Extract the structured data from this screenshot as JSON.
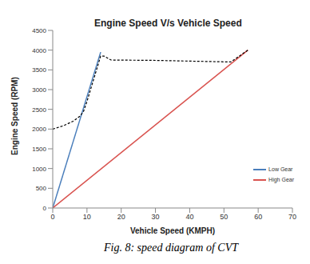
{
  "chart_data": {
    "type": "line",
    "title": "Engine Speed V/s Vehicle Speed",
    "x_label": "Vehicle Speed (KMPH)",
    "y_label": "Engine Speed (RPM)",
    "caption": "Fig. 8: speed diagram of CVT",
    "xlim": [
      0,
      70
    ],
    "xticks": [
      0,
      10,
      20,
      30,
      40,
      50,
      60,
      70
    ],
    "ylim": [
      0,
      4500
    ],
    "yticks": [
      0,
      500,
      1000,
      1500,
      2000,
      2500,
      3000,
      3500,
      4000,
      4500
    ],
    "grid": false,
    "legend": "right",
    "series": [
      {
        "name": "Low Gear",
        "color": "#4a7ebb",
        "x": [
          0,
          14
        ],
        "values": [
          0,
          3950
        ]
      },
      {
        "name": "High Gear",
        "color": "#d9534f",
        "x": [
          0,
          57
        ],
        "values": [
          0,
          4000
        ]
      },
      {
        "color": "#000000",
        "line_style": "dashed",
        "x": [
          0,
          3,
          6,
          8,
          9,
          10,
          14,
          15,
          17,
          30,
          52,
          57
        ],
        "values": [
          2000,
          2080,
          2200,
          2330,
          2450,
          2700,
          3850,
          3850,
          3750,
          3740,
          3700,
          4000
        ]
      }
    ]
  }
}
